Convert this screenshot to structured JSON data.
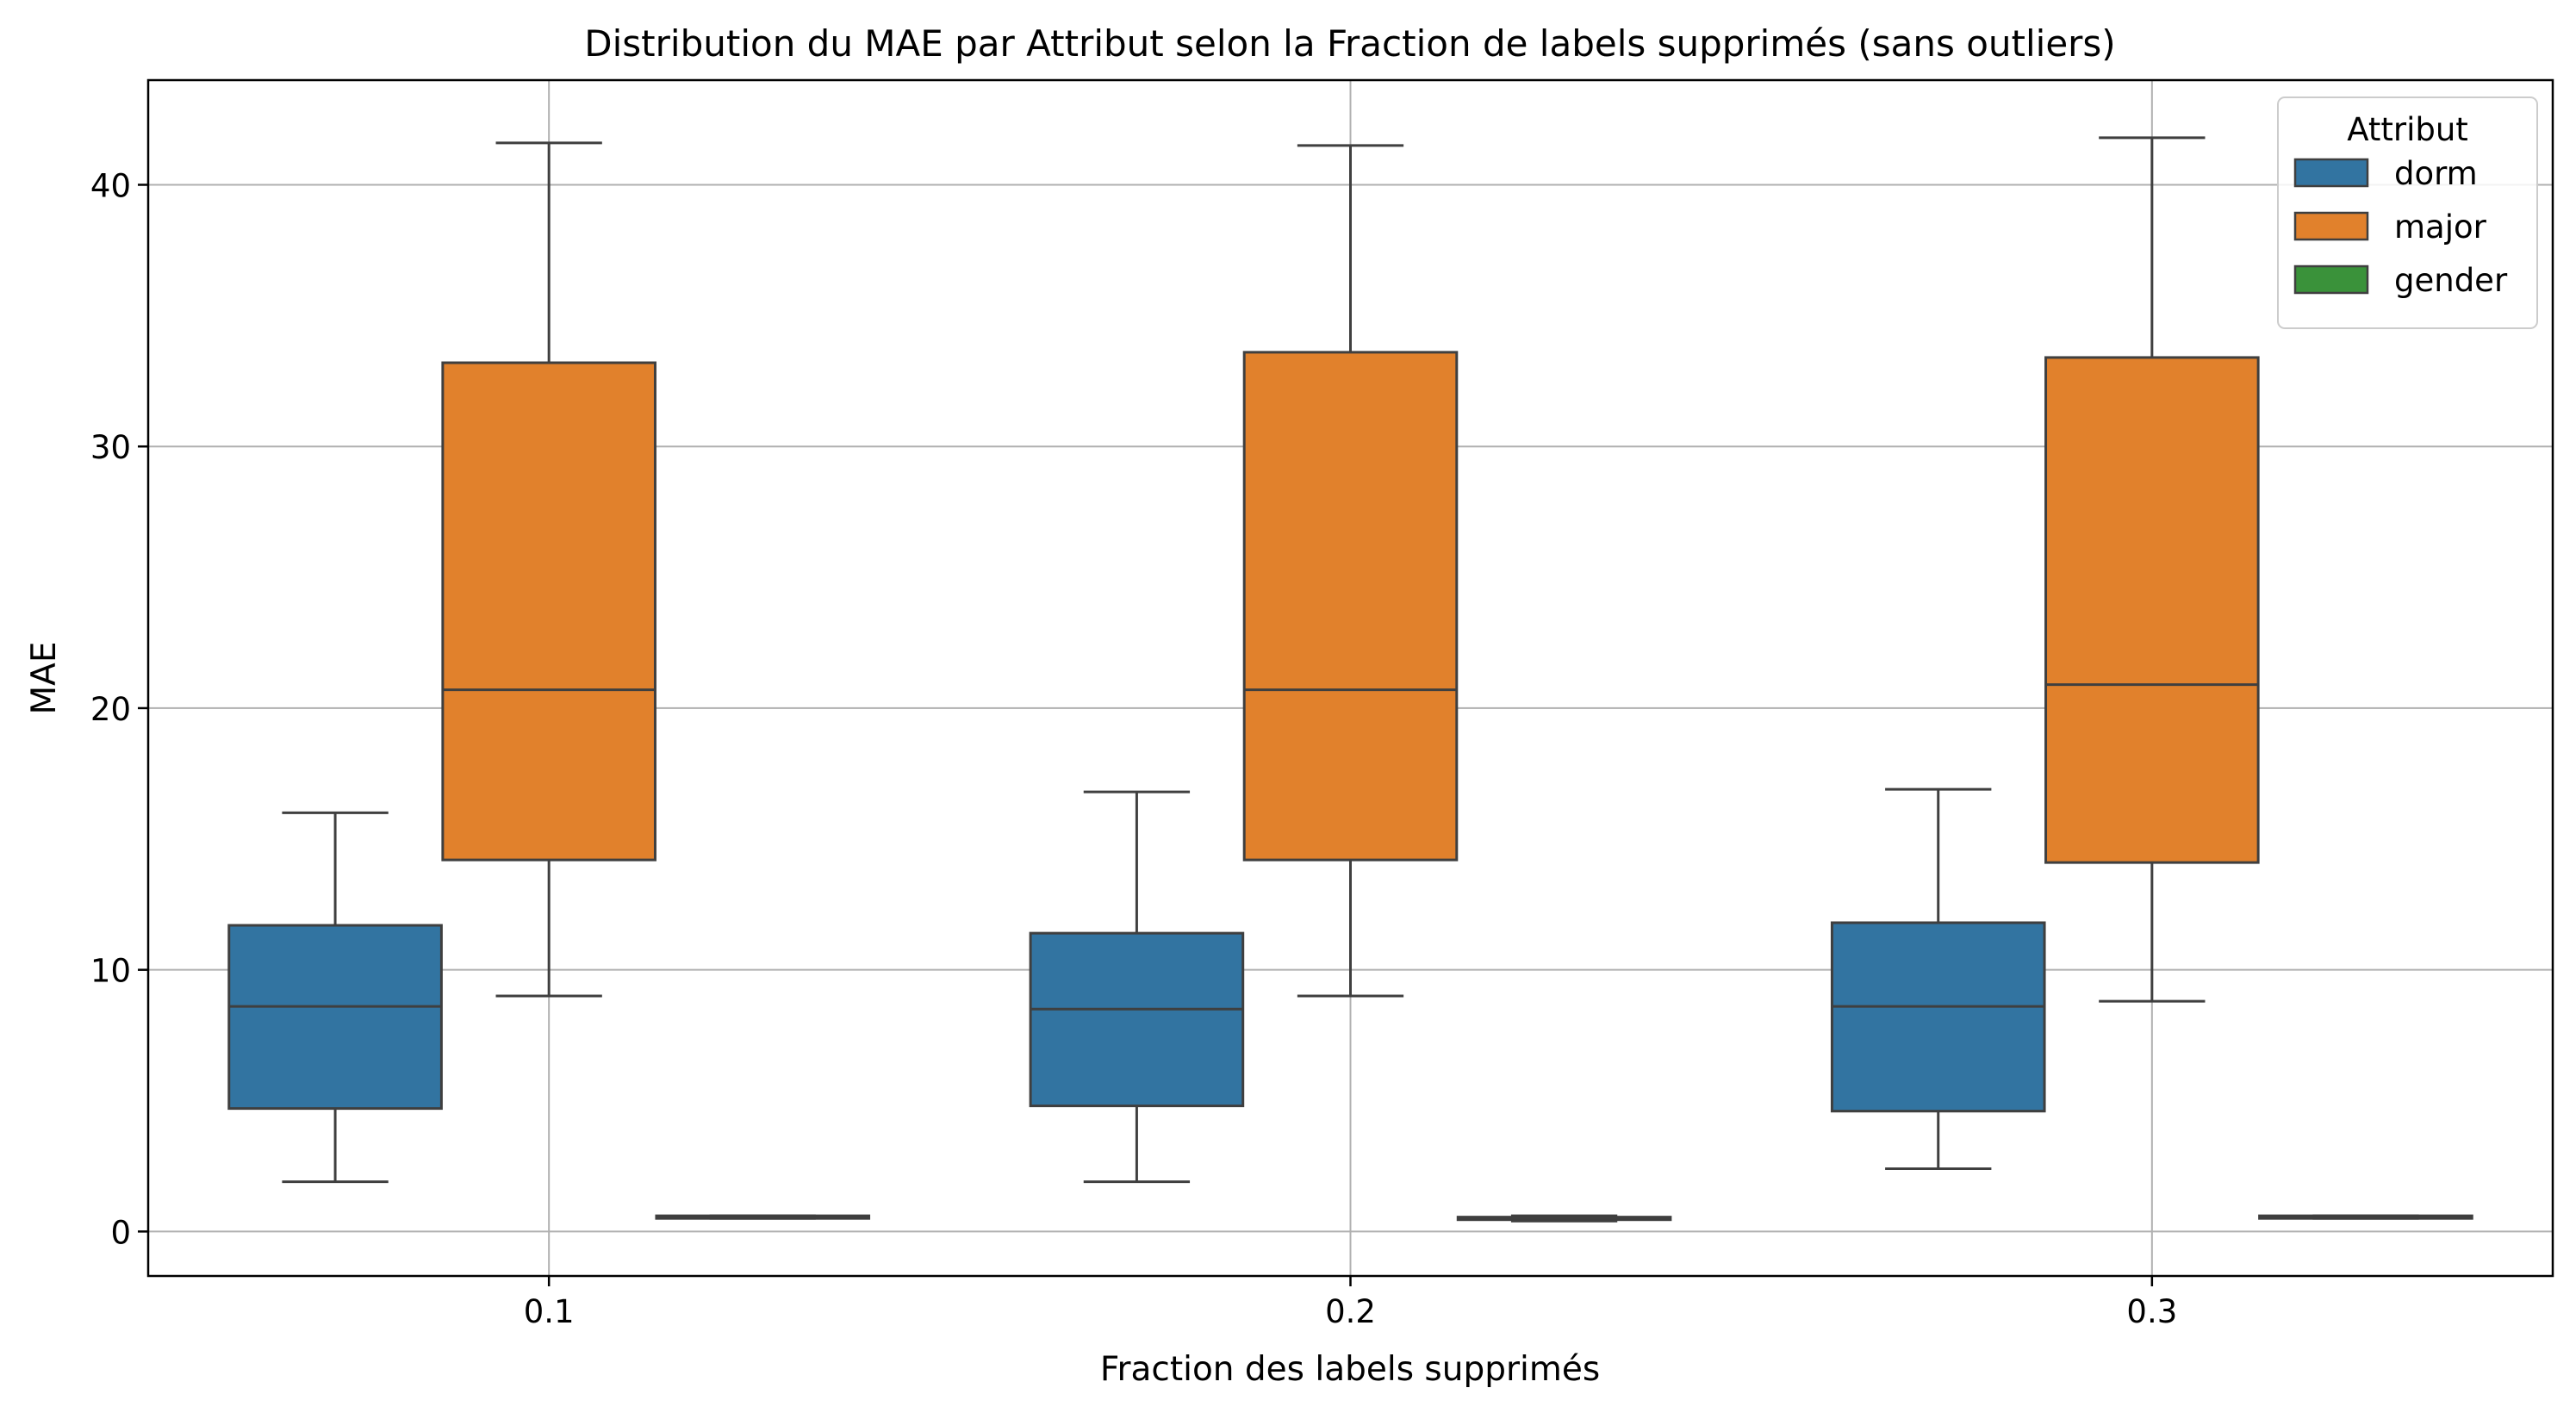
{
  "chart_data": {
    "type": "box",
    "title": "Distribution du MAE par Attribut selon la Fraction de labels supprimés (sans outliers)",
    "xlabel": "Fraction des labels supprimés",
    "ylabel": "MAE",
    "categories": [
      "0.1",
      "0.2",
      "0.3"
    ],
    "y_ticks": [
      "0",
      "10",
      "20",
      "30",
      "40"
    ],
    "ylim": [
      -1.7,
      44
    ],
    "grid": true,
    "legend": {
      "title": "Attribut",
      "placement": "top-right"
    },
    "series": [
      {
        "name": "dorm",
        "color": "#3274a1",
        "boxes": [
          {
            "whisker_low": 1.9,
            "q1": 4.7,
            "median": 8.6,
            "q3": 11.7,
            "whisker_high": 16.0
          },
          {
            "whisker_low": 1.9,
            "q1": 4.8,
            "median": 8.5,
            "q3": 11.4,
            "whisker_high": 16.8
          },
          {
            "whisker_low": 2.4,
            "q1": 4.6,
            "median": 8.6,
            "q3": 11.8,
            "whisker_high": 16.9
          }
        ]
      },
      {
        "name": "major",
        "color": "#e1812c",
        "boxes": [
          {
            "whisker_low": 9.0,
            "q1": 14.2,
            "median": 20.7,
            "q3": 33.2,
            "whisker_high": 41.6
          },
          {
            "whisker_low": 9.0,
            "q1": 14.2,
            "median": 20.7,
            "q3": 33.6,
            "whisker_high": 41.5
          },
          {
            "whisker_low": 8.8,
            "q1": 14.1,
            "median": 20.9,
            "q3": 33.4,
            "whisker_high": 41.8
          }
        ]
      },
      {
        "name": "gender",
        "color": "#3a923a",
        "boxes": [
          {
            "whisker_low": 0.5,
            "q1": 0.5,
            "median": 0.55,
            "q3": 0.6,
            "whisker_high": 0.6
          },
          {
            "whisker_low": 0.4,
            "q1": 0.45,
            "median": 0.5,
            "q3": 0.55,
            "whisker_high": 0.6
          },
          {
            "whisker_low": 0.5,
            "q1": 0.5,
            "median": 0.55,
            "q3": 0.6,
            "whisker_high": 0.6
          }
        ]
      }
    ]
  }
}
